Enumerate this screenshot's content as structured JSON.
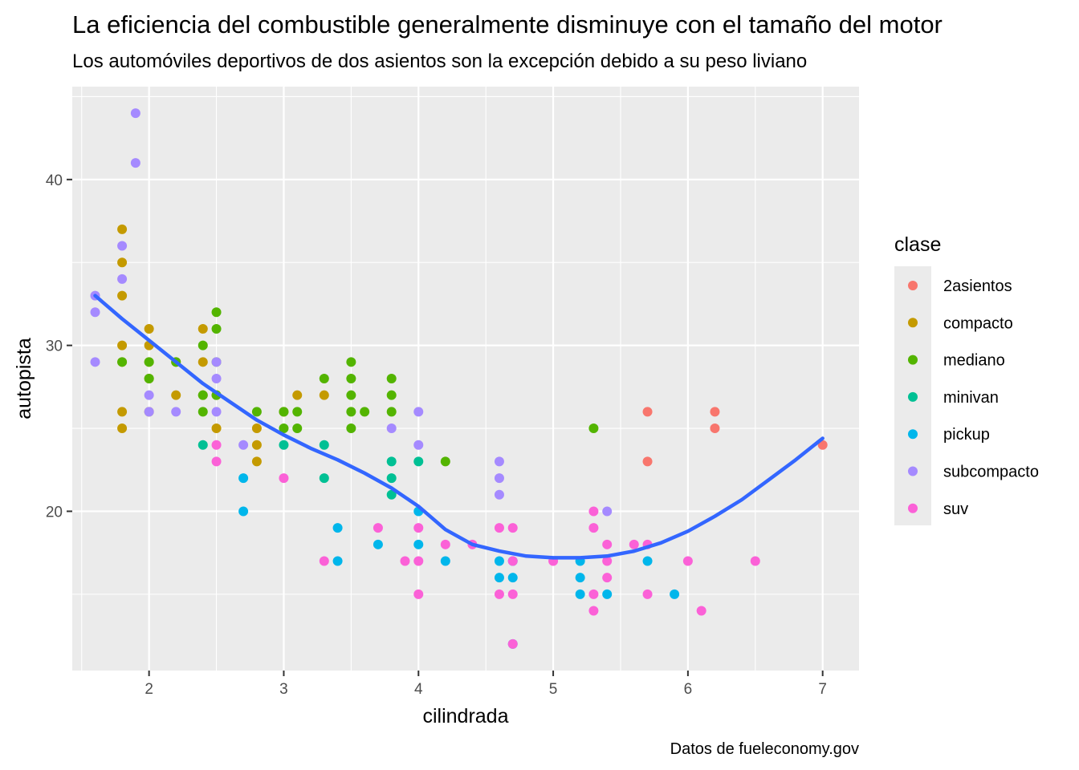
{
  "chart_data": {
    "type": "scatter",
    "title": "La eficiencia del combustible generalmente disminuye con el tamaño del motor",
    "subtitle": "Los automóviles deportivos de dos asientos son la excepción debido a su peso liviano",
    "xlabel": "cilindrada",
    "ylabel": "autopista",
    "caption": "Datos de fueleconomy.gov",
    "xlim": [
      1.43,
      7.27
    ],
    "ylim": [
      10.4,
      45.6
    ],
    "x_ticks": [
      2,
      3,
      4,
      5,
      6,
      7
    ],
    "y_ticks": [
      20,
      30,
      40
    ],
    "grid": true,
    "legend": {
      "title": "clase",
      "position": "right",
      "entries": [
        "2asientos",
        "compacto",
        "mediano",
        "minivan",
        "pickup",
        "subcompacto",
        "suv"
      ]
    },
    "colors": {
      "2asientos": "#F8766D",
      "compacto": "#C49A00",
      "mediano": "#53B400",
      "minivan": "#00C094",
      "pickup": "#00B6EB",
      "subcompacto": "#A58AFF",
      "suv": "#FB61D7",
      "trend": "#3366FF",
      "panel": "#EBEBEB"
    },
    "series": [
      {
        "name": "2asientos",
        "points": [
          [
            5.7,
            26
          ],
          [
            5.7,
            23
          ],
          [
            6.2,
            26
          ],
          [
            6.2,
            25
          ],
          [
            7.0,
            24
          ]
        ]
      },
      {
        "name": "compacto",
        "points": [
          [
            1.8,
            37
          ],
          [
            1.8,
            35
          ],
          [
            1.8,
            33
          ],
          [
            1.8,
            30
          ],
          [
            1.8,
            29
          ],
          [
            1.8,
            26
          ],
          [
            1.8,
            25
          ],
          [
            2.0,
            31
          ],
          [
            2.0,
            30
          ],
          [
            2.0,
            29
          ],
          [
            2.0,
            28
          ],
          [
            2.0,
            26
          ],
          [
            2.2,
            29
          ],
          [
            2.2,
            27
          ],
          [
            2.4,
            31
          ],
          [
            2.4,
            29
          ],
          [
            2.4,
            27
          ],
          [
            2.5,
            27
          ],
          [
            2.5,
            25
          ],
          [
            2.8,
            25
          ],
          [
            2.8,
            24
          ],
          [
            2.8,
            23
          ],
          [
            3.0,
            26
          ],
          [
            3.1,
            27
          ],
          [
            3.3,
            27
          ]
        ]
      },
      {
        "name": "mediano",
        "points": [
          [
            1.8,
            29
          ],
          [
            2.0,
            29
          ],
          [
            2.0,
            28
          ],
          [
            2.2,
            29
          ],
          [
            2.4,
            30
          ],
          [
            2.4,
            27
          ],
          [
            2.4,
            26
          ],
          [
            2.5,
            32
          ],
          [
            2.5,
            31
          ],
          [
            2.5,
            29
          ],
          [
            2.5,
            27
          ],
          [
            2.8,
            26
          ],
          [
            3.0,
            26
          ],
          [
            3.0,
            25
          ],
          [
            3.1,
            26
          ],
          [
            3.1,
            25
          ],
          [
            3.3,
            28
          ],
          [
            3.5,
            29
          ],
          [
            3.5,
            28
          ],
          [
            3.5,
            27
          ],
          [
            3.5,
            26
          ],
          [
            3.5,
            25
          ],
          [
            3.6,
            26
          ],
          [
            3.8,
            28
          ],
          [
            3.8,
            27
          ],
          [
            3.8,
            26
          ],
          [
            4.2,
            23
          ],
          [
            5.3,
            25
          ]
        ]
      },
      {
        "name": "minivan",
        "points": [
          [
            2.4,
            24
          ],
          [
            3.0,
            24
          ],
          [
            3.3,
            24
          ],
          [
            3.3,
            22
          ],
          [
            3.8,
            23
          ],
          [
            3.8,
            22
          ],
          [
            3.8,
            21
          ],
          [
            4.0,
            23
          ]
        ]
      },
      {
        "name": "pickup",
        "points": [
          [
            2.7,
            22
          ],
          [
            2.7,
            20
          ],
          [
            3.4,
            19
          ],
          [
            3.4,
            17
          ],
          [
            3.7,
            18
          ],
          [
            4.0,
            20
          ],
          [
            4.0,
            18
          ],
          [
            4.2,
            17
          ],
          [
            4.6,
            17
          ],
          [
            4.6,
            16
          ],
          [
            4.7,
            17
          ],
          [
            4.7,
            16
          ],
          [
            4.7,
            12
          ],
          [
            5.2,
            17
          ],
          [
            5.2,
            16
          ],
          [
            5.2,
            15
          ],
          [
            5.4,
            15
          ],
          [
            5.7,
            17
          ],
          [
            5.9,
            15
          ]
        ]
      },
      {
        "name": "subcompacto",
        "points": [
          [
            1.6,
            33
          ],
          [
            1.6,
            32
          ],
          [
            1.6,
            29
          ],
          [
            1.8,
            36
          ],
          [
            1.8,
            34
          ],
          [
            1.9,
            44
          ],
          [
            1.9,
            41
          ],
          [
            2.0,
            27
          ],
          [
            2.0,
            26
          ],
          [
            2.2,
            26
          ],
          [
            2.5,
            29
          ],
          [
            2.5,
            28
          ],
          [
            2.5,
            26
          ],
          [
            2.7,
            24
          ],
          [
            3.8,
            25
          ],
          [
            4.0,
            26
          ],
          [
            4.0,
            24
          ],
          [
            4.6,
            23
          ],
          [
            4.6,
            22
          ],
          [
            4.6,
            21
          ],
          [
            5.4,
            20
          ]
        ]
      },
      {
        "name": "suv",
        "points": [
          [
            2.5,
            24
          ],
          [
            2.5,
            23
          ],
          [
            3.0,
            22
          ],
          [
            3.3,
            17
          ],
          [
            3.7,
            19
          ],
          [
            3.9,
            17
          ],
          [
            4.0,
            19
          ],
          [
            4.0,
            17
          ],
          [
            4.0,
            15
          ],
          [
            4.2,
            18
          ],
          [
            4.4,
            18
          ],
          [
            4.6,
            19
          ],
          [
            4.6,
            15
          ],
          [
            4.7,
            19
          ],
          [
            4.7,
            17
          ],
          [
            4.7,
            15
          ],
          [
            4.7,
            12
          ],
          [
            5.0,
            17
          ],
          [
            5.3,
            20
          ],
          [
            5.3,
            19
          ],
          [
            5.3,
            15
          ],
          [
            5.3,
            14
          ],
          [
            5.4,
            18
          ],
          [
            5.4,
            17
          ],
          [
            5.4,
            16
          ],
          [
            5.6,
            18
          ],
          [
            5.7,
            18
          ],
          [
            5.7,
            15
          ],
          [
            6.0,
            17
          ],
          [
            6.1,
            14
          ],
          [
            6.5,
            17
          ]
        ]
      }
    ],
    "trend": {
      "type": "loess",
      "x": [
        1.6,
        1.8,
        2.0,
        2.2,
        2.4,
        2.6,
        2.8,
        3.0,
        3.2,
        3.4,
        3.6,
        3.8,
        4.0,
        4.2,
        4.4,
        4.6,
        4.8,
        5.0,
        5.2,
        5.4,
        5.6,
        5.8,
        6.0,
        6.2,
        6.4,
        6.6,
        6.8,
        7.0
      ],
      "y": [
        33.0,
        31.6,
        30.3,
        29.0,
        27.7,
        26.6,
        25.5,
        24.6,
        23.8,
        23.1,
        22.3,
        21.4,
        20.3,
        18.9,
        18.0,
        17.6,
        17.3,
        17.2,
        17.2,
        17.3,
        17.6,
        18.1,
        18.8,
        19.7,
        20.7,
        21.9,
        23.1,
        24.4
      ]
    }
  }
}
